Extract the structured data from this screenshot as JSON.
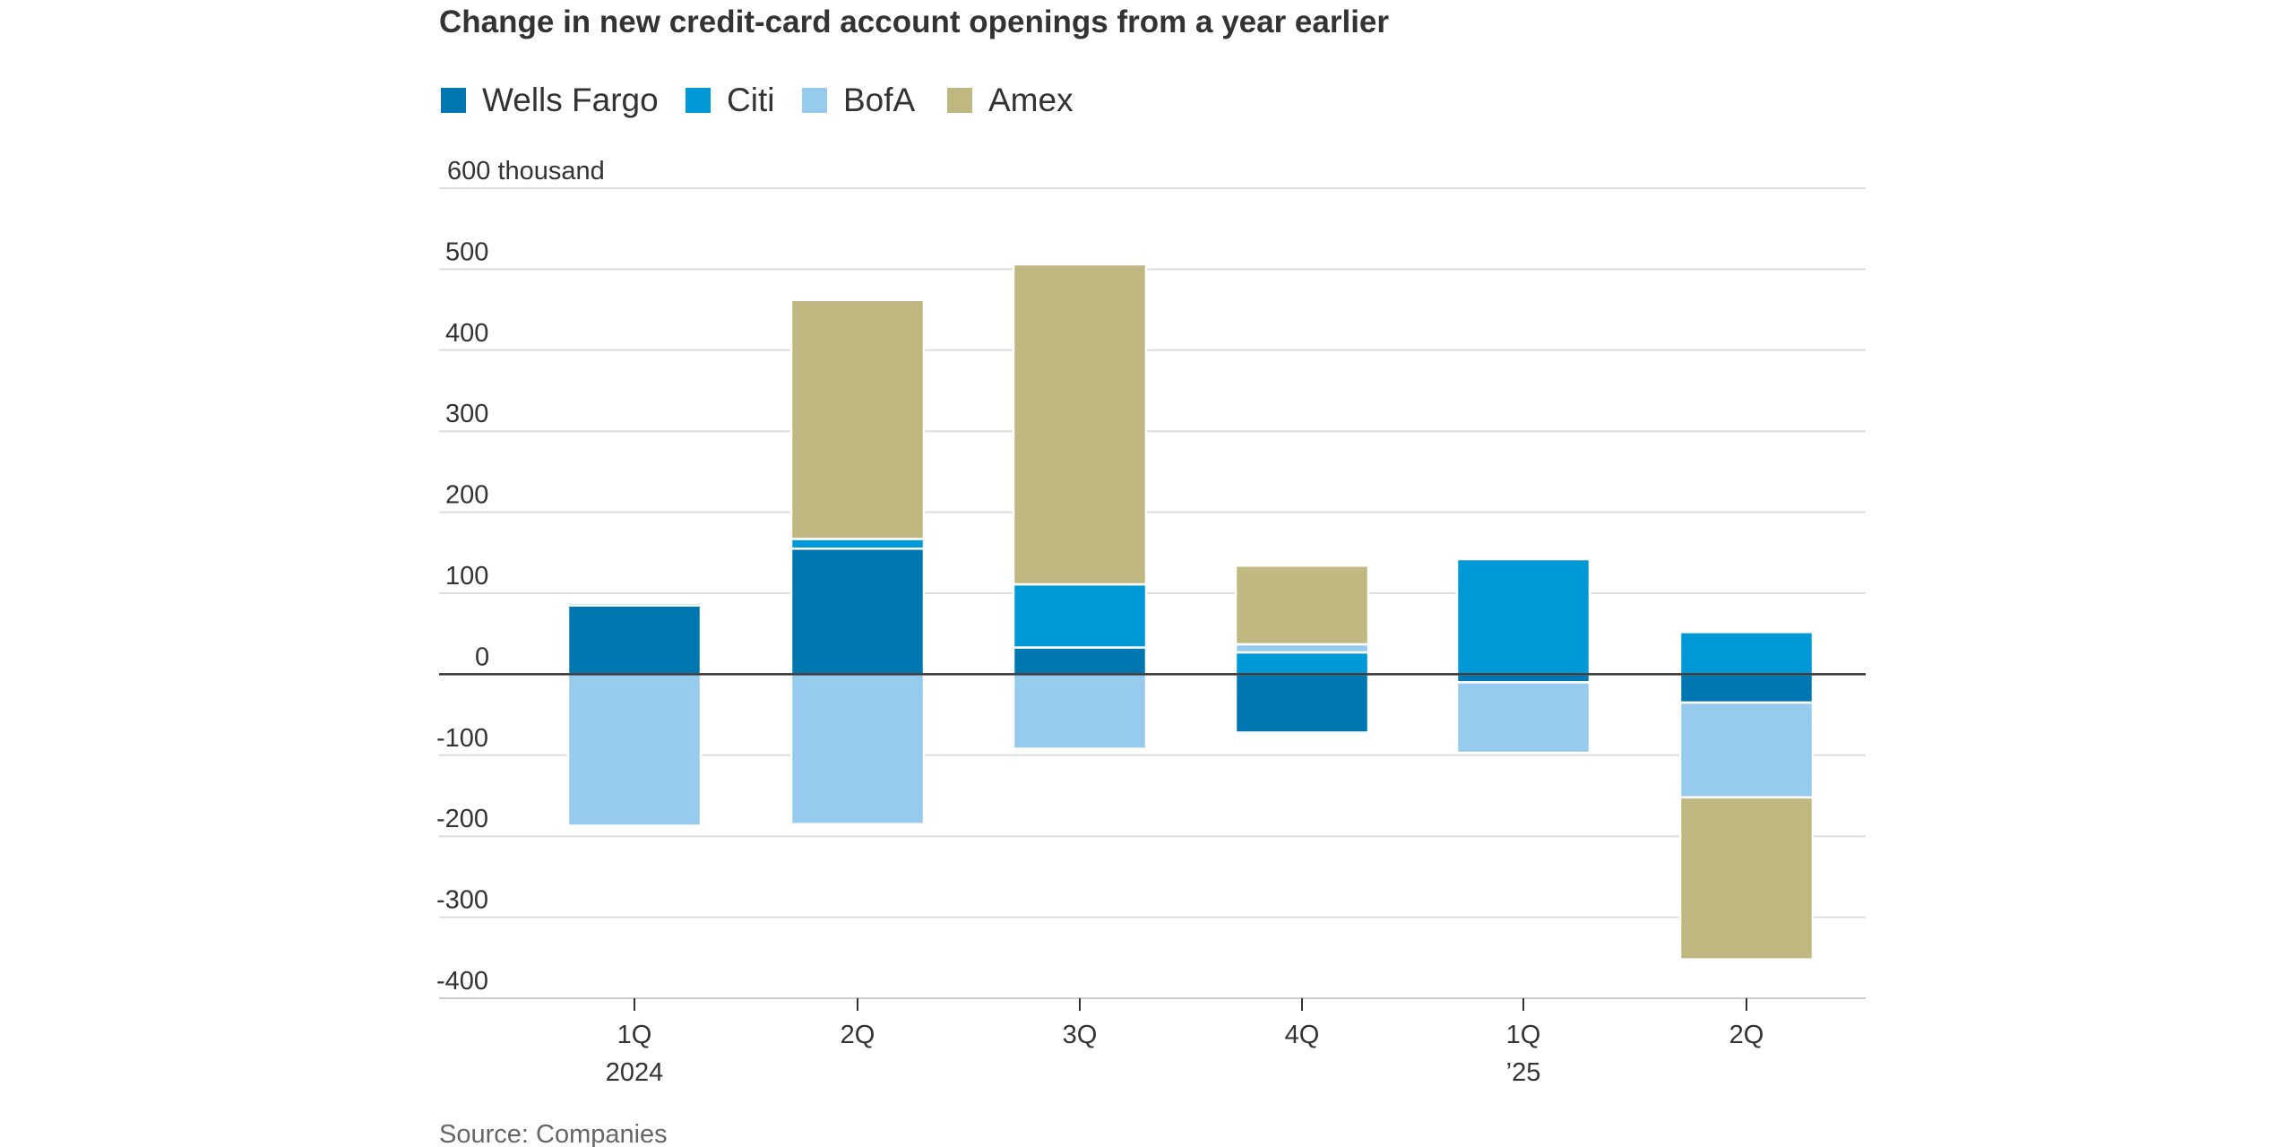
{
  "chart_data": {
    "type": "bar",
    "stacked": true,
    "title": "Change in new credit-card account openings from a year earlier",
    "y_unit_label": "600 thousand",
    "ylim": [
      -400,
      600
    ],
    "yticks": [
      {
        "value": 600,
        "label": "600 thousand"
      },
      {
        "value": 500,
        "label": "500"
      },
      {
        "value": 400,
        "label": "400"
      },
      {
        "value": 300,
        "label": "300"
      },
      {
        "value": 200,
        "label": "200"
      },
      {
        "value": 100,
        "label": "100"
      },
      {
        "value": 0,
        "label": "0"
      },
      {
        "value": -100,
        "label": "-100"
      },
      {
        "value": -200,
        "label": "-200"
      },
      {
        "value": -300,
        "label": "-300"
      },
      {
        "value": -400,
        "label": "-400"
      }
    ],
    "categories": [
      {
        "line1": "1Q",
        "line2": "2024"
      },
      {
        "line1": "2Q",
        "line2": ""
      },
      {
        "line1": "3Q",
        "line2": ""
      },
      {
        "line1": "4Q",
        "line2": ""
      },
      {
        "line1": "1Q",
        "line2": "’25"
      },
      {
        "line1": "2Q",
        "line2": ""
      }
    ],
    "series": [
      {
        "name": "Wells Fargo",
        "color": "#0077b0",
        "values": [
          85,
          155,
          33,
          -72,
          -10,
          -35
        ]
      },
      {
        "name": "Citi",
        "color": "#0099d8",
        "values": [
          3,
          12,
          78,
          27,
          142,
          52
        ]
      },
      {
        "name": "BofA",
        "color": "#97cbee",
        "values": [
          -187,
          -185,
          -92,
          10,
          -87,
          -117
        ]
      },
      {
        "name": "Amex",
        "color": "#bfb881",
        "values": [
          0,
          295,
          395,
          97,
          0,
          -200
        ]
      }
    ],
    "grid": true,
    "legend_position": "top-left",
    "source": "Source: Companies"
  }
}
